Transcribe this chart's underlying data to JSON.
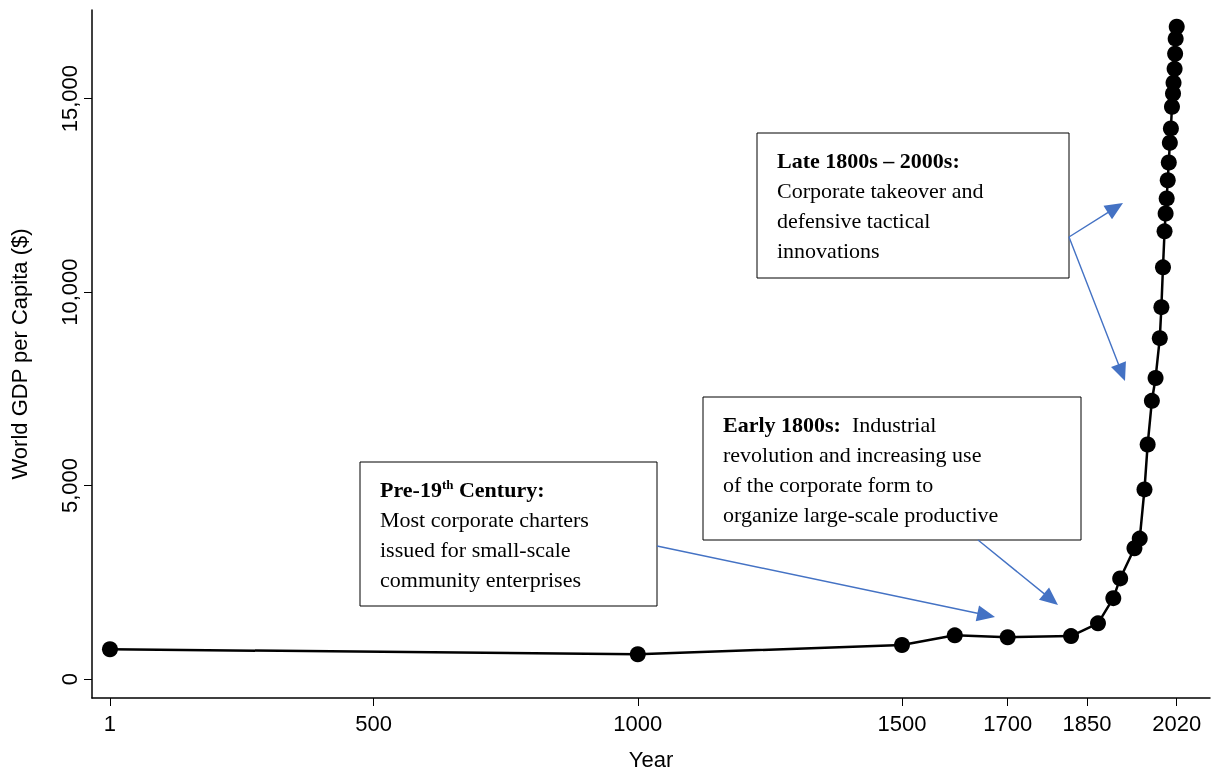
{
  "chart_data": {
    "type": "line",
    "xlabel": "Year",
    "ylabel": "World GDP per Capita ($)",
    "x": [
      1,
      1000,
      1500,
      1600,
      1700,
      1820,
      1871,
      1900,
      1913,
      1940,
      1950,
      1959,
      1965,
      1973,
      1980,
      1988,
      1991,
      1994,
      1997,
      1999,
      2001,
      2003,
      2005,
      2007,
      2009,
      2011,
      2013,
      2014,
      2016,
      2017,
      2018,
      2020
    ],
    "series": [
      {
        "color": "#000000",
        "values": [
          770,
          640,
          880,
          1130,
          1080,
          1110,
          1440,
          2090,
          2600,
          3380,
          3630,
          4900,
          6060,
          7190,
          7780,
          8810,
          9610,
          10640,
          11570,
          12030,
          12420,
          12890,
          13350,
          13860,
          14230,
          14790,
          15130,
          15410,
          15770,
          16160,
          16550,
          16860
        ]
      }
    ],
    "xlim": [
      -33,
      2083
    ],
    "xticks": [
      1,
      500,
      1000,
      1500,
      1700,
      1850,
      2020
    ],
    "ylim": [
      -490,
      17290
    ],
    "yticks": [
      0,
      {
        "value": 5000,
        "label": "5,000"
      },
      {
        "value": 10000,
        "label": "10,000"
      },
      {
        "value": 15000,
        "label": "15,000"
      }
    ],
    "marker": "circle",
    "line_style": "solid",
    "grid": false,
    "annotations": [
      "Pre-19$^{th}$ Century:\nMost corporate charters\nissued for small-scale\ncommunity enterprises",
      "Early 1800s:  Industrial\nrevolution and increasing use\nof the corporate form to\norganize large-scale productive",
      "Late 1800s – 2000s:\nCorporate takeover and\ndefensive tactical\ninnovations"
    ]
  }
}
